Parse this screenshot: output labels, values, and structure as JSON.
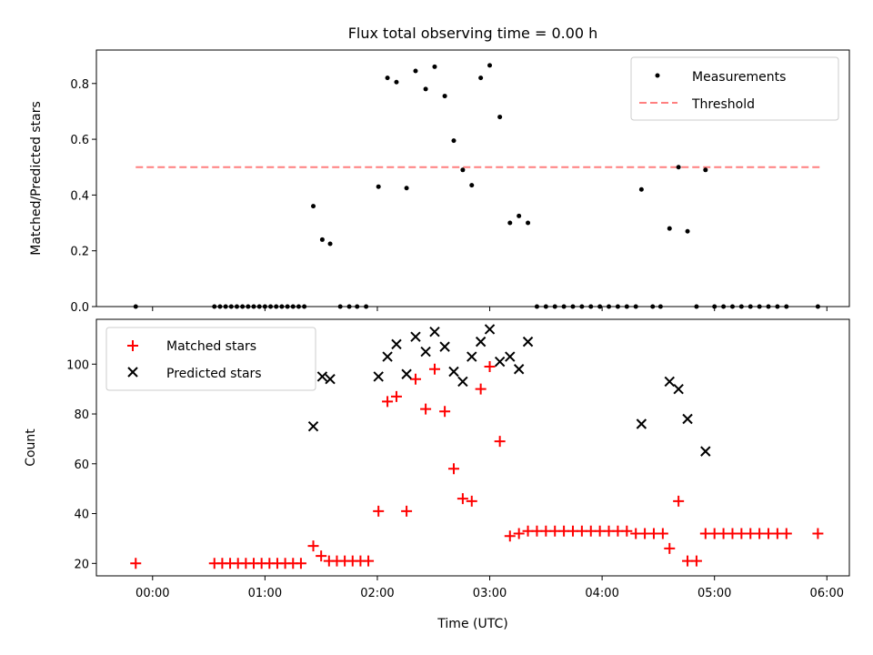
{
  "chart_data": [
    {
      "type": "scatter",
      "title": "Flux total observing time = 0.00 h",
      "xlabel": "",
      "ylabel": "Matched/Predicted stars",
      "xlim": [
        -0.5,
        6.2
      ],
      "ylim": [
        0,
        0.92
      ],
      "yticks": [
        0.0,
        0.2,
        0.4,
        0.6,
        0.8
      ],
      "ytick_labels": [
        "0.0",
        "0.2",
        "0.4",
        "0.6",
        "0.8"
      ],
      "legend": {
        "position": "top-right",
        "entries": [
          "Measurements",
          "Threshold"
        ]
      },
      "threshold": {
        "name": "Threshold",
        "value": 0.5,
        "x_start": -0.15,
        "x_end": 5.95,
        "color": "#ff7f7f"
      },
      "series": [
        {
          "name": "Measurements",
          "marker": "dot",
          "color": "#000000",
          "points": [
            [
              -0.15,
              0.0
            ],
            [
              0.55,
              0.0
            ],
            [
              0.6,
              0.0
            ],
            [
              0.65,
              0.0
            ],
            [
              0.7,
              0.0
            ],
            [
              0.75,
              0.0
            ],
            [
              0.8,
              0.0
            ],
            [
              0.85,
              0.0
            ],
            [
              0.9,
              0.0
            ],
            [
              0.95,
              0.0
            ],
            [
              1.0,
              0.0
            ],
            [
              1.05,
              0.0
            ],
            [
              1.1,
              0.0
            ],
            [
              1.15,
              0.0
            ],
            [
              1.2,
              0.0
            ],
            [
              1.25,
              0.0
            ],
            [
              1.3,
              0.0
            ],
            [
              1.35,
              0.0
            ],
            [
              1.43,
              0.36
            ],
            [
              1.51,
              0.24
            ],
            [
              1.58,
              0.225
            ],
            [
              1.67,
              0.0
            ],
            [
              1.75,
              0.0
            ],
            [
              1.82,
              0.0
            ],
            [
              1.9,
              0.0
            ],
            [
              2.01,
              0.43
            ],
            [
              2.09,
              0.82
            ],
            [
              2.17,
              0.805
            ],
            [
              2.26,
              0.425
            ],
            [
              2.34,
              0.845
            ],
            [
              2.43,
              0.78
            ],
            [
              2.51,
              0.86
            ],
            [
              2.6,
              0.755
            ],
            [
              2.68,
              0.595
            ],
            [
              2.76,
              0.49
            ],
            [
              2.84,
              0.435
            ],
            [
              2.92,
              0.82
            ],
            [
              3.0,
              0.865
            ],
            [
              3.09,
              0.68
            ],
            [
              3.18,
              0.3
            ],
            [
              3.26,
              0.325
            ],
            [
              3.34,
              0.3
            ],
            [
              3.42,
              0.0
            ],
            [
              3.5,
              0.0
            ],
            [
              3.58,
              0.0
            ],
            [
              3.66,
              0.0
            ],
            [
              3.74,
              0.0
            ],
            [
              3.82,
              0.0
            ],
            [
              3.9,
              0.0
            ],
            [
              3.98,
              0.0
            ],
            [
              4.06,
              0.0
            ],
            [
              4.14,
              0.0
            ],
            [
              4.22,
              0.0
            ],
            [
              4.3,
              0.0
            ],
            [
              4.35,
              0.42
            ],
            [
              4.45,
              0.0
            ],
            [
              4.52,
              0.0
            ],
            [
              4.6,
              0.28
            ],
            [
              4.68,
              0.5
            ],
            [
              4.76,
              0.27
            ],
            [
              4.84,
              0.0
            ],
            [
              4.92,
              0.49
            ],
            [
              5.0,
              0.0
            ],
            [
              5.08,
              0.0
            ],
            [
              5.16,
              0.0
            ],
            [
              5.24,
              0.0
            ],
            [
              5.32,
              0.0
            ],
            [
              5.4,
              0.0
            ],
            [
              5.48,
              0.0
            ],
            [
              5.56,
              0.0
            ],
            [
              5.64,
              0.0
            ],
            [
              5.92,
              0.0
            ]
          ]
        }
      ]
    },
    {
      "type": "scatter",
      "title": "",
      "xlabel": "Time (UTC)",
      "ylabel": "Count",
      "xlim": [
        -0.5,
        6.2
      ],
      "ylim": [
        15,
        118
      ],
      "xticks": [
        0,
        1,
        2,
        3,
        4,
        5,
        6
      ],
      "xtick_labels": [
        "00:00",
        "01:00",
        "02:00",
        "03:00",
        "04:00",
        "05:00",
        "06:00"
      ],
      "yticks": [
        20,
        40,
        60,
        80,
        100
      ],
      "ytick_labels": [
        "20",
        "40",
        "60",
        "80",
        "100"
      ],
      "legend": {
        "position": "top-left",
        "entries": [
          "Matched stars",
          "Predicted stars"
        ]
      },
      "series": [
        {
          "name": "Matched stars",
          "marker": "plus",
          "color": "#ff0000",
          "points": [
            [
              -0.15,
              20
            ],
            [
              0.55,
              20
            ],
            [
              0.62,
              20
            ],
            [
              0.69,
              20
            ],
            [
              0.76,
              20
            ],
            [
              0.83,
              20
            ],
            [
              0.9,
              20
            ],
            [
              0.97,
              20
            ],
            [
              1.04,
              20
            ],
            [
              1.11,
              20
            ],
            [
              1.18,
              20
            ],
            [
              1.25,
              20
            ],
            [
              1.32,
              20
            ],
            [
              1.43,
              27
            ],
            [
              1.5,
              23
            ],
            [
              1.57,
              21
            ],
            [
              1.64,
              21
            ],
            [
              1.71,
              21
            ],
            [
              1.78,
              21
            ],
            [
              1.85,
              21
            ],
            [
              1.92,
              21
            ],
            [
              2.01,
              41
            ],
            [
              2.09,
              85
            ],
            [
              2.17,
              87
            ],
            [
              2.26,
              41
            ],
            [
              2.34,
              94
            ],
            [
              2.43,
              82
            ],
            [
              2.51,
              98
            ],
            [
              2.6,
              81
            ],
            [
              2.68,
              58
            ],
            [
              2.76,
              46
            ],
            [
              2.84,
              45
            ],
            [
              2.92,
              90
            ],
            [
              3.0,
              99
            ],
            [
              3.09,
              69
            ],
            [
              3.18,
              31
            ],
            [
              3.26,
              32
            ],
            [
              3.34,
              33
            ],
            [
              3.42,
              33
            ],
            [
              3.5,
              33
            ],
            [
              3.58,
              33
            ],
            [
              3.66,
              33
            ],
            [
              3.74,
              33
            ],
            [
              3.82,
              33
            ],
            [
              3.9,
              33
            ],
            [
              3.98,
              33
            ],
            [
              4.06,
              33
            ],
            [
              4.14,
              33
            ],
            [
              4.22,
              33
            ],
            [
              4.3,
              32
            ],
            [
              4.38,
              32
            ],
            [
              4.46,
              32
            ],
            [
              4.54,
              32
            ],
            [
              4.6,
              26
            ],
            [
              4.68,
              45
            ],
            [
              4.76,
              21
            ],
            [
              4.84,
              21
            ],
            [
              4.92,
              32
            ],
            [
              5.0,
              32
            ],
            [
              5.08,
              32
            ],
            [
              5.16,
              32
            ],
            [
              5.24,
              32
            ],
            [
              5.32,
              32
            ],
            [
              5.4,
              32
            ],
            [
              5.48,
              32
            ],
            [
              5.56,
              32
            ],
            [
              5.64,
              32
            ],
            [
              5.92,
              32
            ]
          ]
        },
        {
          "name": "Predicted stars",
          "marker": "x",
          "color": "#000000",
          "points": [
            [
              1.43,
              75
            ],
            [
              1.51,
              95
            ],
            [
              1.58,
              94
            ],
            [
              2.01,
              95
            ],
            [
              2.09,
              103
            ],
            [
              2.17,
              108
            ],
            [
              2.26,
              96
            ],
            [
              2.34,
              111
            ],
            [
              2.43,
              105
            ],
            [
              2.51,
              113
            ],
            [
              2.6,
              107
            ],
            [
              2.68,
              97
            ],
            [
              2.76,
              93
            ],
            [
              2.84,
              103
            ],
            [
              2.92,
              109
            ],
            [
              3.0,
              114
            ],
            [
              3.09,
              101
            ],
            [
              3.18,
              103
            ],
            [
              3.26,
              98
            ],
            [
              3.34,
              109
            ],
            [
              4.35,
              76
            ],
            [
              4.6,
              93
            ],
            [
              4.68,
              90
            ],
            [
              4.76,
              78
            ],
            [
              4.92,
              65
            ]
          ]
        }
      ]
    }
  ]
}
